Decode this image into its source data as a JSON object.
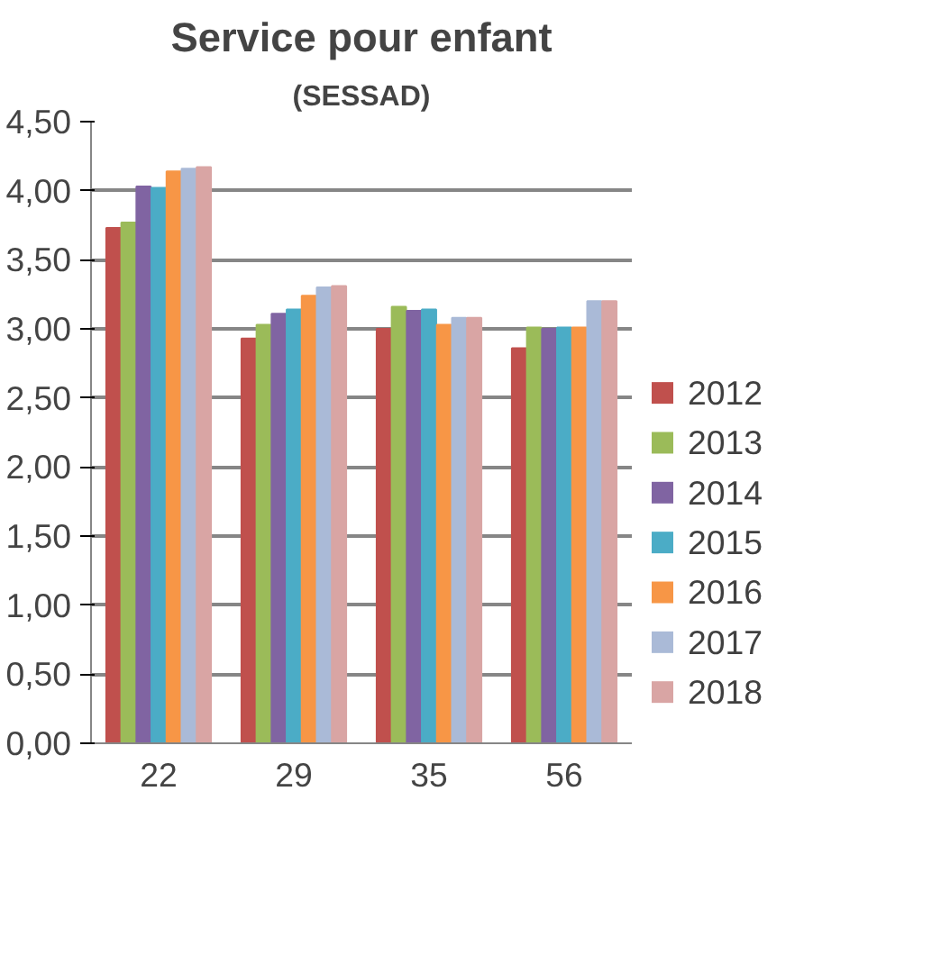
{
  "chart_data": {
    "type": "bar",
    "title": "Service pour enfant",
    "subtitle": "(SESSAD)",
    "categories": [
      "22",
      "29",
      "35",
      "56"
    ],
    "series": [
      {
        "name": "2012",
        "color": "#c0504d",
        "values": [
          3.73,
          2.93,
          3.0,
          2.86
        ]
      },
      {
        "name": "2013",
        "color": "#9bbb59",
        "values": [
          3.77,
          3.03,
          3.16,
          3.01
        ]
      },
      {
        "name": "2014",
        "color": "#8064a2",
        "values": [
          4.03,
          3.11,
          3.13,
          3.0
        ]
      },
      {
        "name": "2015",
        "color": "#4bacc6",
        "values": [
          4.02,
          3.14,
          3.14,
          3.01
        ]
      },
      {
        "name": "2016",
        "color": "#f79646",
        "values": [
          4.14,
          3.24,
          3.03,
          3.01
        ]
      },
      {
        "name": "2017",
        "color": "#aabad7",
        "values": [
          4.16,
          3.3,
          3.08,
          3.2
        ]
      },
      {
        "name": "2018",
        "color": "#d9a5a4",
        "values": [
          4.17,
          3.31,
          3.08,
          3.2
        ]
      }
    ],
    "ylim": [
      0,
      4.5
    ],
    "yticks": [
      {
        "value": 0,
        "label": "0,00"
      },
      {
        "value": 0.5,
        "label": "0,50"
      },
      {
        "value": 1,
        "label": "1,00"
      },
      {
        "value": 1.5,
        "label": "1,50"
      },
      {
        "value": 2,
        "label": "2,00"
      },
      {
        "value": 2.5,
        "label": "2,50"
      },
      {
        "value": 3,
        "label": "3,00"
      },
      {
        "value": 3.5,
        "label": "3,50"
      },
      {
        "value": 4,
        "label": "4,00"
      },
      {
        "value": 4.5,
        "label": "4,50"
      }
    ],
    "grid": "y",
    "legend": "right"
  }
}
